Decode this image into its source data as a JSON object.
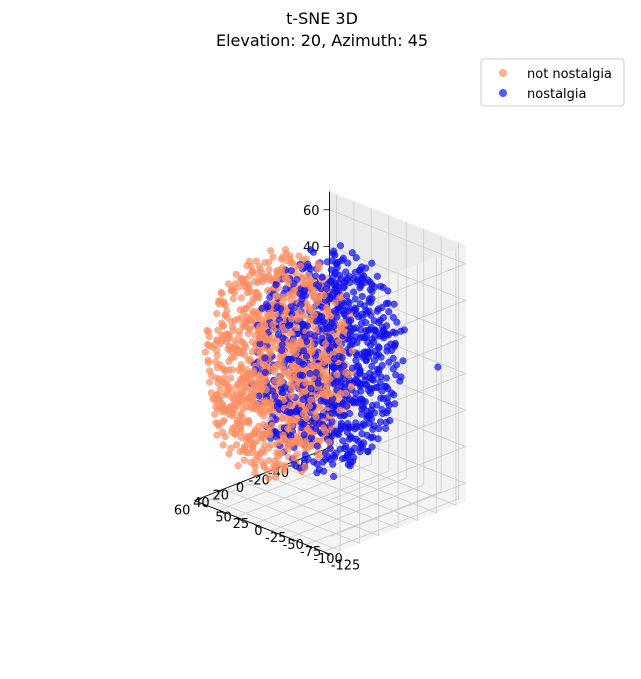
{
  "chart_data": {
    "type": "scatter",
    "projection": "3d",
    "title": "t-SNE 3D",
    "subtitle": "Elevation: 20, Azimuth: 45",
    "view": {
      "elevation": 20,
      "azimuth": 45
    },
    "grid": true,
    "legend": {
      "placement": "upper right",
      "entries": [
        "not nostalgia",
        "nostalgia"
      ]
    },
    "axes": {
      "x": {
        "range": [
          -70,
          70
        ],
        "ticks": [
          -60,
          -40,
          -20,
          0,
          20,
          40,
          60
        ],
        "label": ""
      },
      "y": {
        "range": [
          -135,
          60
        ],
        "ticks": [
          -125,
          -100,
          -75,
          -50,
          -25,
          0,
          25,
          50
        ],
        "label": ""
      },
      "z": {
        "range": [
          -70,
          70
        ],
        "ticks": [
          -60,
          -40,
          -20,
          0,
          20,
          40,
          60
        ],
        "label": ""
      }
    },
    "series": [
      {
        "name": "not nostalgia",
        "color": "#fc8d62",
        "count": 1100,
        "center": [
          15,
          15,
          0
        ],
        "radius": 62
      },
      {
        "name": "nostalgia",
        "color": "#1010ee",
        "count": 850,
        "center": [
          -15,
          -15,
          0
        ],
        "radius": 62,
        "outliers": [
          [
            -45,
            -130,
            8
          ]
        ]
      }
    ]
  }
}
